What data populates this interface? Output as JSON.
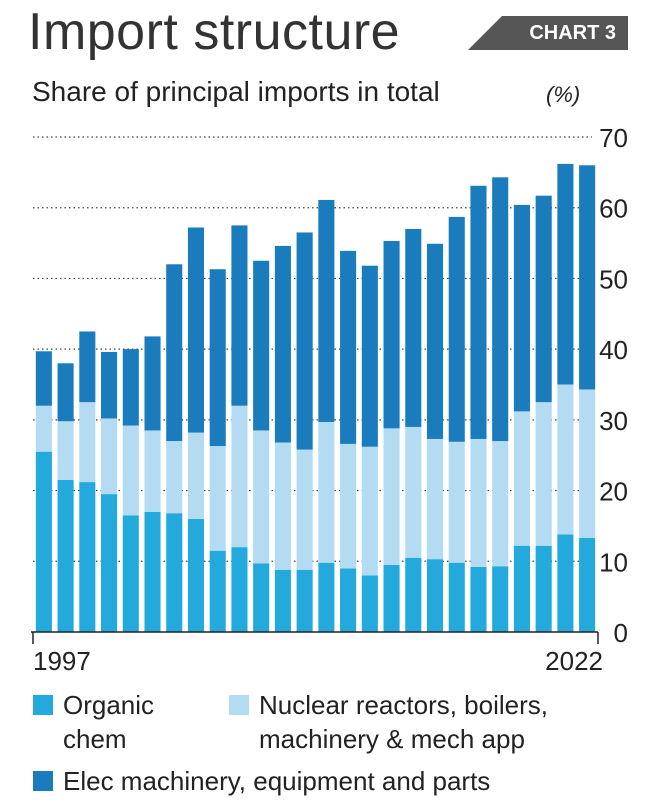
{
  "header": {
    "title": "Import structure",
    "badge": "CHART 3",
    "subtitle": "Share of principal imports in total",
    "unit": "(%)"
  },
  "colors": {
    "organic": "#23a9db",
    "nuclear": "#b3dcf2",
    "elec": "#1a7bbd",
    "badge_bg": "#555555",
    "grid": "#444444"
  },
  "chart_data": {
    "type": "bar",
    "stacked": true,
    "x": [
      1997,
      1998,
      1999,
      2000,
      2001,
      2002,
      2003,
      2004,
      2005,
      2006,
      2007,
      2008,
      2009,
      2010,
      2011,
      2012,
      2013,
      2014,
      2015,
      2016,
      2017,
      2018,
      2019,
      2020,
      2021,
      2022
    ],
    "x_tick_labels": {
      "first": "1997",
      "last": "2022"
    },
    "ylim": [
      0,
      70
    ],
    "yticks": [
      0,
      10,
      20,
      30,
      40,
      50,
      60,
      70
    ],
    "grid": "dotted horizontal",
    "series": [
      {
        "name": "Organic chem",
        "color_key": "organic",
        "values": [
          25.5,
          21.5,
          21.2,
          19.5,
          16.5,
          17,
          16.8,
          16,
          11.5,
          12,
          9.7,
          8.8,
          8.8,
          9.8,
          9,
          8,
          9.5,
          10.5,
          10.3,
          9.8,
          9.2,
          9.3,
          12.2,
          12.2,
          13.8,
          13.3
        ]
      },
      {
        "name": "Nuclear reactors, boilers, machinery & mech app",
        "color_key": "nuclear",
        "values": [
          6.5,
          8.3,
          11.3,
          10.7,
          12.7,
          11.5,
          10.2,
          12.2,
          14.8,
          20,
          18.8,
          18,
          17,
          19.9,
          17.6,
          18.2,
          19.3,
          18.5,
          17,
          17.1,
          18.1,
          17.7,
          19,
          20.3,
          21.2,
          21
        ]
      },
      {
        "name": "Elec machinery, equipment and parts",
        "color_key": "elec",
        "values": [
          7.7,
          8.2,
          10,
          9.4,
          10.8,
          13.3,
          25,
          29,
          25,
          25.5,
          24,
          27.8,
          30.7,
          31.4,
          27.3,
          25.6,
          26.5,
          28,
          27.6,
          31.8,
          35.8,
          37.3,
          29.2,
          29.2,
          31.2,
          31.7
        ]
      }
    ]
  },
  "legend": [
    {
      "label_lines": [
        "Organic",
        "chem"
      ],
      "color_key": "organic"
    },
    {
      "label_lines": [
        "Nuclear reactors, boilers,",
        "machinery & mech app"
      ],
      "color_key": "nuclear"
    },
    {
      "label_lines": [
        "Elec machinery, equipment and parts"
      ],
      "color_key": "elec"
    }
  ]
}
